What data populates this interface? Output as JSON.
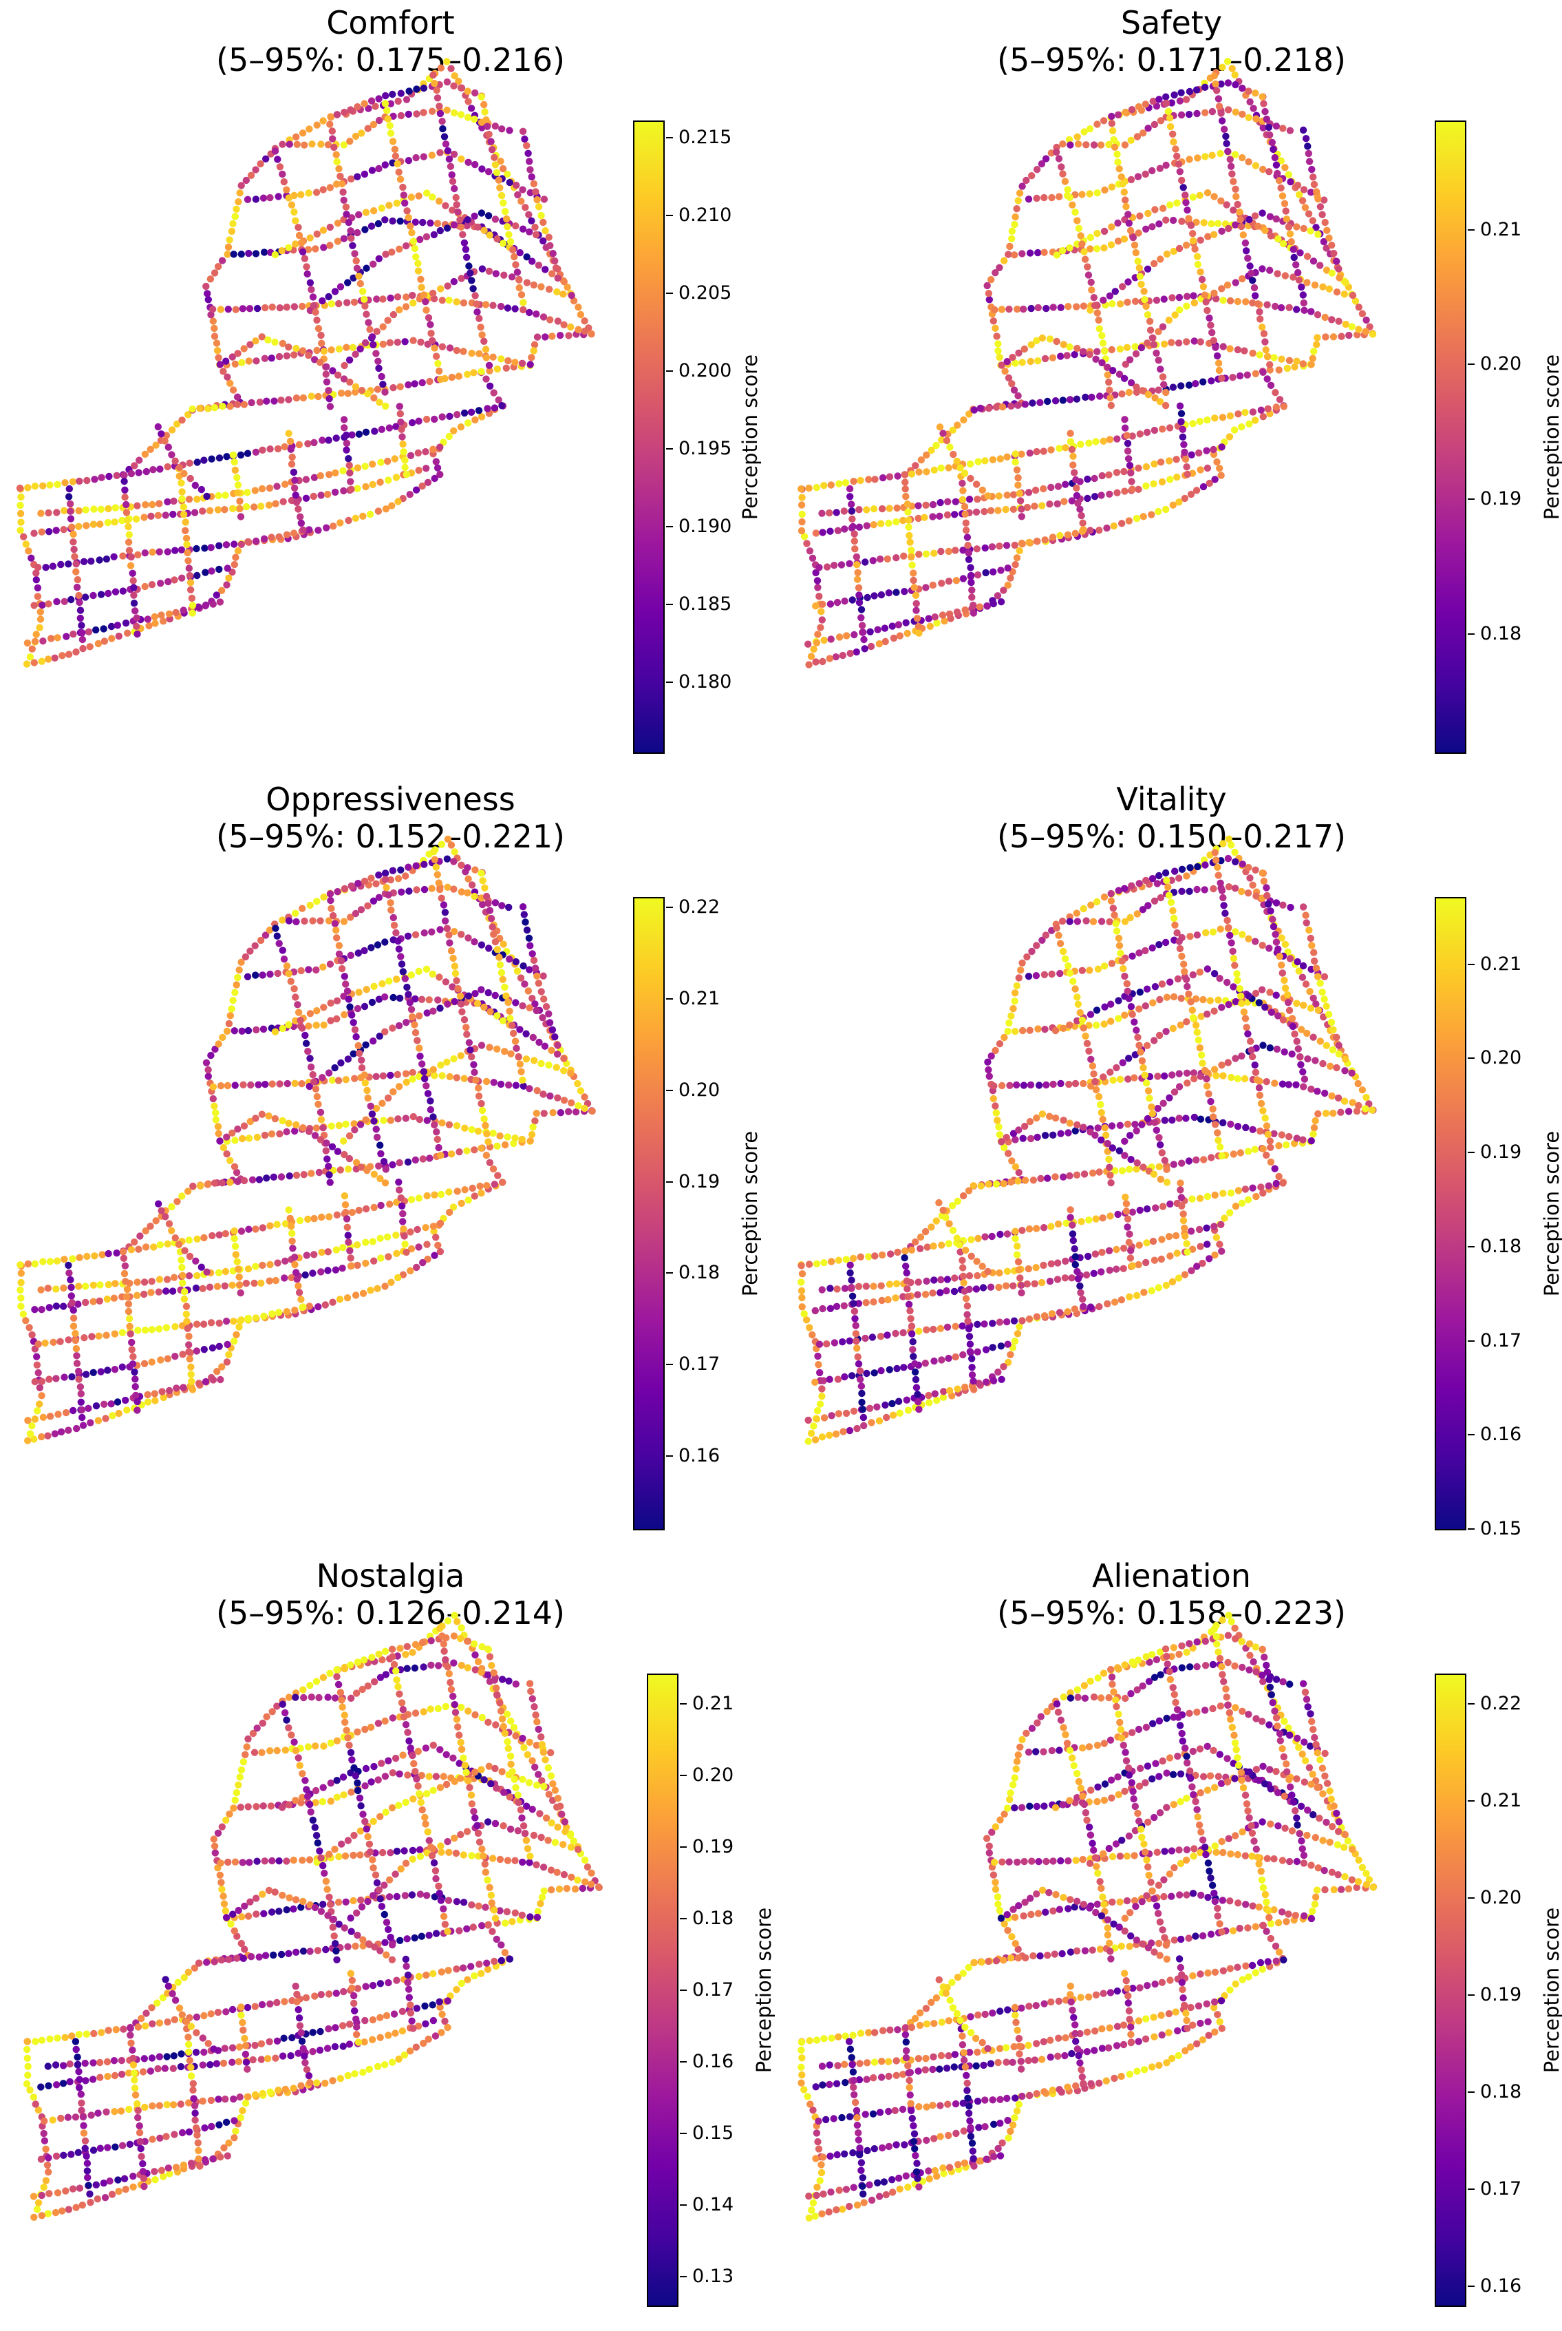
{
  "colorbar_label": "Perception score",
  "palette": [
    "#0d0887",
    "#46039f",
    "#7201a8",
    "#9c179e",
    "#bd3786",
    "#d8576b",
    "#ed7953",
    "#fb9f3a",
    "#fdca26",
    "#f0f921"
  ],
  "panels": [
    {
      "name": "Comfort",
      "range": "(5–95%: 0.175–0.216)",
      "vmin": 0.1755,
      "vmax": 0.216,
      "ticks": [
        "0.215",
        "0.210",
        "0.205",
        "0.200",
        "0.195",
        "0.190",
        "0.185",
        "0.180"
      ],
      "tick_values": [
        0.215,
        0.21,
        0.205,
        0.2,
        0.195,
        0.19,
        0.185,
        0.18
      ]
    },
    {
      "name": "Safety",
      "range": "(5–95%: 0.171–0.218)",
      "vmin": 0.1712,
      "vmax": 0.218,
      "ticks": [
        "0.21",
        "0.20",
        "0.19",
        "0.18"
      ],
      "tick_values": [
        0.21,
        0.2,
        0.19,
        0.18
      ]
    },
    {
      "name": "Oppressiveness",
      "range": "(5–95%: 0.152–0.221)",
      "vmin": 0.152,
      "vmax": 0.221,
      "ticks": [
        "0.22",
        "0.21",
        "0.20",
        "0.19",
        "0.18",
        "0.17",
        "0.16"
      ],
      "tick_values": [
        0.22,
        0.21,
        0.2,
        0.19,
        0.18,
        0.17,
        0.16
      ]
    },
    {
      "name": "Vitality",
      "range": "(5–95%: 0.150–0.217)",
      "vmin": 0.15,
      "vmax": 0.217,
      "ticks": [
        "0.21",
        "0.20",
        "0.19",
        "0.18",
        "0.17",
        "0.16",
        "0.15"
      ],
      "tick_values": [
        0.21,
        0.2,
        0.19,
        0.18,
        0.17,
        0.16,
        0.15
      ]
    },
    {
      "name": "Nostalgia",
      "range": "(5–95%: 0.126–0.214)",
      "vmin": 0.126,
      "vmax": 0.214,
      "ticks": [
        "0.21",
        "0.20",
        "0.19",
        "0.18",
        "0.17",
        "0.16",
        "0.15",
        "0.14",
        "0.13"
      ],
      "tick_values": [
        0.21,
        0.2,
        0.19,
        0.18,
        0.17,
        0.16,
        0.15,
        0.14,
        0.13
      ]
    },
    {
      "name": "Alienation",
      "range": "(5–95%: 0.158–0.223)",
      "vmin": 0.158,
      "vmax": 0.223,
      "ticks": [
        "0.22",
        "0.21",
        "0.20",
        "0.19",
        "0.18",
        "0.17",
        "0.16"
      ],
      "tick_values": [
        0.22,
        0.21,
        0.2,
        0.19,
        0.18,
        0.17,
        0.16
      ]
    }
  ]
}
